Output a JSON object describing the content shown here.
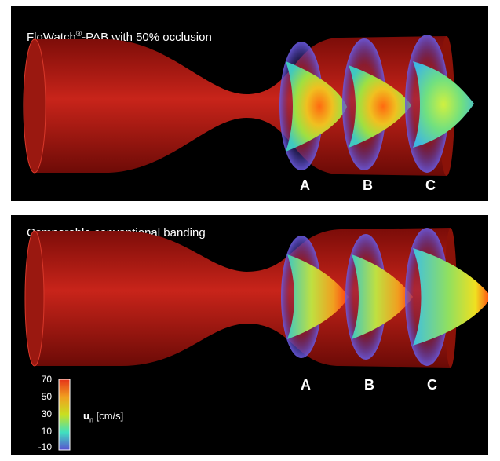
{
  "top_panel": {
    "title_pre": "FloWatch",
    "title_reg": "®",
    "title_post": "-PAB with 50% occlusion",
    "plane_labels": [
      "A",
      "B",
      "C"
    ]
  },
  "bottom_panel": {
    "title": "Comparable conventional banding",
    "plane_labels": [
      "A",
      "B",
      "C"
    ]
  },
  "colorbar": {
    "ticks": [
      "70",
      "50",
      "30",
      "10",
      "-10"
    ],
    "quantity": "u",
    "quantity_sub": "n",
    "unit": "[cm/s]",
    "colors": [
      "#e53218",
      "#f0a020",
      "#c8e020",
      "#40e0c0",
      "#5a50d0"
    ]
  },
  "colors": {
    "vessel": "#b81c12",
    "background": "#000000"
  }
}
